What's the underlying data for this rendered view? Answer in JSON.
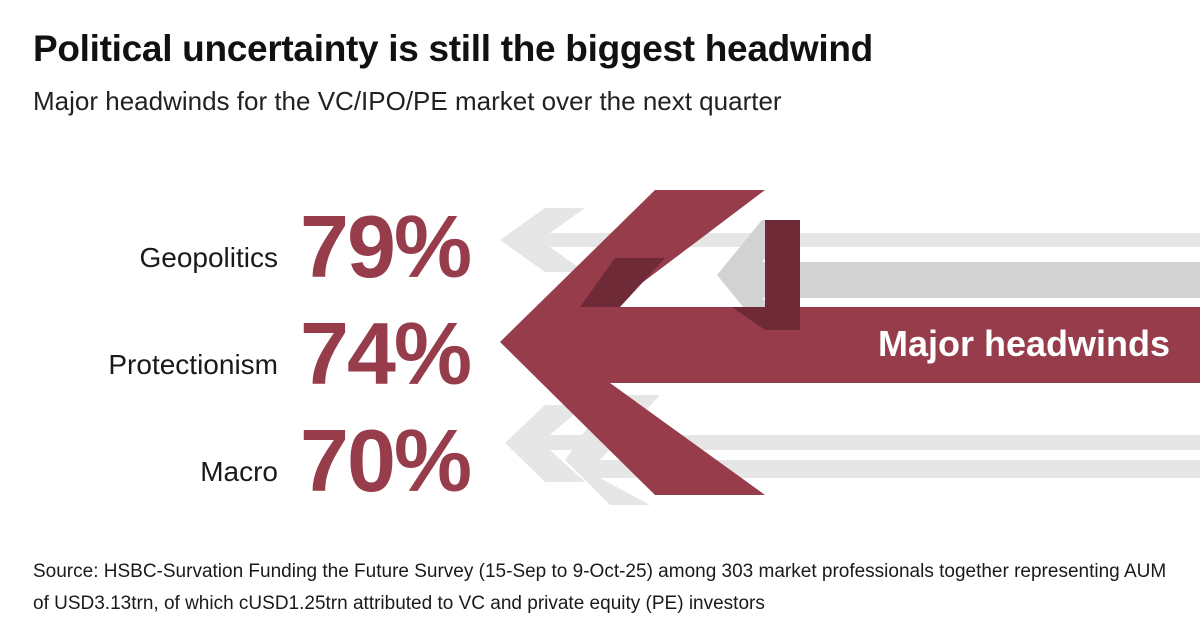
{
  "title": "Political uncertainty is still the biggest headwind",
  "subtitle": "Major headwinds for the VC/IPO/PE market over the next quarter",
  "colors": {
    "accent": "#973c4a",
    "accent_dark": "#6e2a36",
    "grey_light": "#e6e6e6",
    "grey_mid": "#d2d2d2"
  },
  "banner": {
    "label": "Major headwinds",
    "icon": "left-arrow-icon"
  },
  "chart_data": {
    "type": "table",
    "title": "Major headwinds for the VC/IPO/PE market over the next quarter",
    "categories": [
      "Geopolitics",
      "Protectionism",
      "Macro"
    ],
    "values": [
      79,
      74,
      70
    ],
    "value_labels": [
      "79%",
      "74%",
      "70%"
    ],
    "unit": "%"
  },
  "source": "Source: HSBC-Survation Funding the Future Survey (15-Sep to 9-Oct-25) among 303 market professionals together representing AUM of USD3.13trn, of which cUSD1.25trn attributed to VC and private equity (PE) investors"
}
